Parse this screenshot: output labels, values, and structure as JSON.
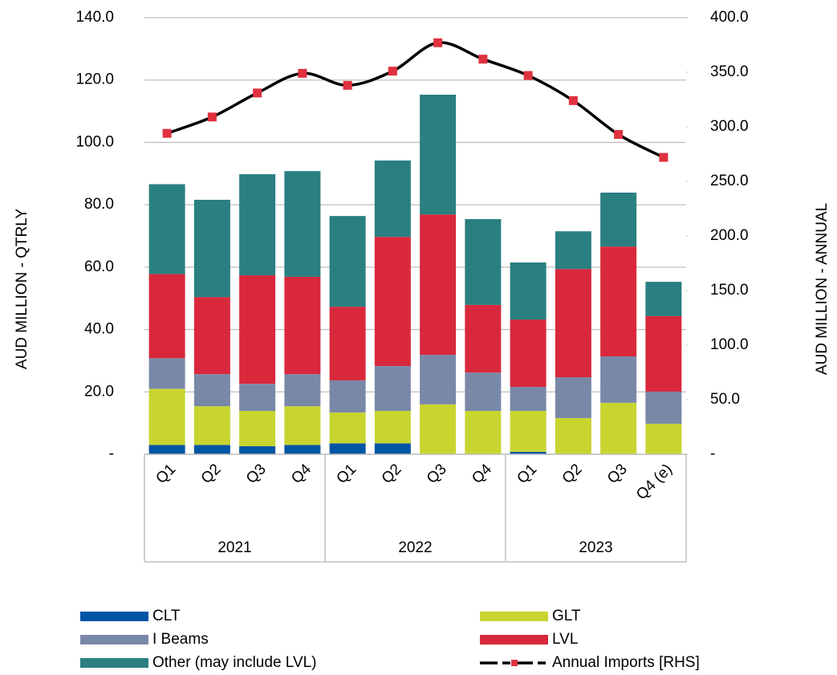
{
  "chart_data": {
    "type": "bar",
    "stacked": true,
    "y_label": "AUD MILLION - QTRLY",
    "y2_label": "AUD MILLION - ANNUAL",
    "categories": [
      "Q1",
      "Q2",
      "Q3",
      "Q4",
      "Q1",
      "Q2",
      "Q3",
      "Q4",
      "Q1",
      "Q2",
      "Q3",
      "Q4 (e)"
    ],
    "groups": [
      "2021",
      "2022",
      "2023"
    ],
    "series": [
      {
        "name": "CLT",
        "color": "#0055a5",
        "values": [
          3.0,
          3.0,
          2.6,
          3.0,
          3.5,
          3.5,
          0,
          0,
          0.8,
          0,
          0,
          0
        ]
      },
      {
        "name": "GLT",
        "color": "#c8d530",
        "values": [
          18.0,
          12.4,
          11.3,
          12.4,
          9.9,
          10.4,
          16.0,
          13.9,
          13.1,
          11.6,
          16.5,
          9.8
        ]
      },
      {
        "name": "I Beams",
        "color": "#7a88a8",
        "values": [
          9.8,
          10.3,
          8.7,
          10.3,
          10.3,
          14.4,
          15.9,
          12.3,
          7.7,
          13.1,
          14.9,
          10.3
        ]
      },
      {
        "name": "LVL",
        "color": "#d9283c",
        "values": [
          27.0,
          24.7,
          34.8,
          31.2,
          23.6,
          41.4,
          45.0,
          21.7,
          21.6,
          34.7,
          35.2,
          24.2
        ]
      },
      {
        "name": "Other (may include LVL)",
        "color": "#2a7f80",
        "values": [
          28.8,
          31.2,
          32.4,
          33.9,
          29.1,
          24.5,
          38.4,
          27.5,
          18.3,
          12.1,
          17.3,
          11.0
        ]
      },
      {
        "name": "Annual Imports [RHS]",
        "type": "line",
        "axis": "y2",
        "color": "#000000",
        "marker_color": "#e0313f",
        "values": [
          294,
          309,
          331,
          349,
          338,
          351,
          377,
          362,
          347,
          324,
          293,
          272
        ]
      }
    ],
    "ylim": [
      0,
      140
    ],
    "yticks": [
      {
        "value": 0,
        "label": "-"
      },
      {
        "value": 20,
        "label": "20.0"
      },
      {
        "value": 40,
        "label": "40.0"
      },
      {
        "value": 60,
        "label": "60.0"
      },
      {
        "value": 80,
        "label": "80.0"
      },
      {
        "value": 100,
        "label": "100.0"
      },
      {
        "value": 120,
        "label": "120.0"
      },
      {
        "value": 140,
        "label": "140.0"
      }
    ],
    "y2lim": [
      0,
      400
    ],
    "y2ticks": [
      {
        "value": 0,
        "label": "-"
      },
      {
        "value": 50,
        "label": "50.0"
      },
      {
        "value": 100,
        "label": "100.0"
      },
      {
        "value": 150,
        "label": "150.0"
      },
      {
        "value": 200,
        "label": "200.0"
      },
      {
        "value": 250,
        "label": "250.0"
      },
      {
        "value": 300,
        "label": "300.0"
      },
      {
        "value": 350,
        "label": "350.0"
      },
      {
        "value": 400,
        "label": "400.0"
      }
    ],
    "grid": true
  }
}
